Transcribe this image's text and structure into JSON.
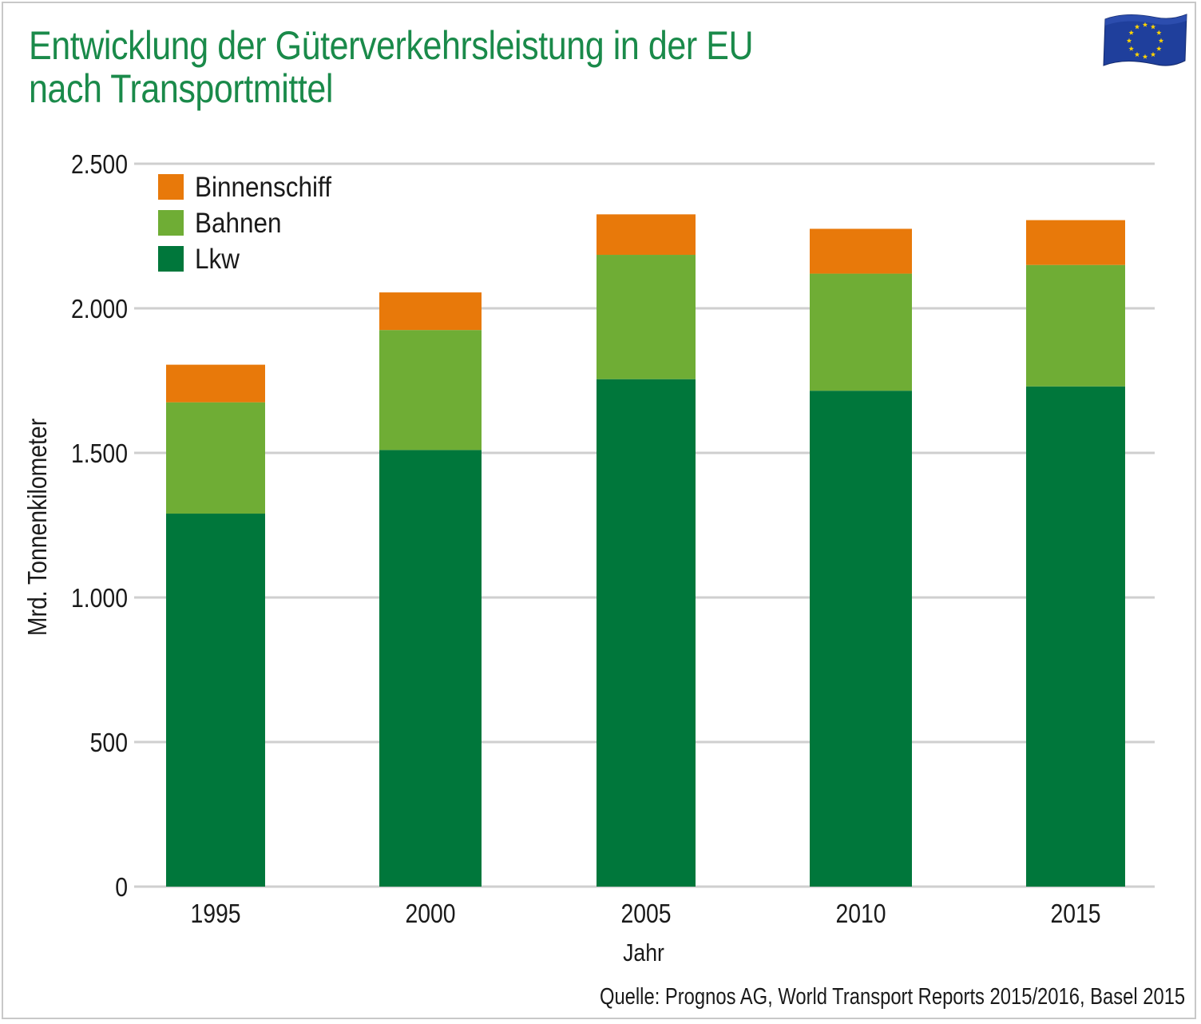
{
  "title": {
    "line1": "Entwicklung der Güterverkehrsleistung in der EU",
    "line2": "nach Transportmittel"
  },
  "source": "Quelle: Prognos AG, World Transport Reports 2015/2016, Basel 2015",
  "flag_icon": "eu-flag-icon",
  "colors": {
    "title": "#1a8a4a",
    "lkw": "#00773b",
    "bahnen": "#6fad35",
    "binnenschiff": "#e8790a",
    "grid": "#cfcfcf"
  },
  "chart_data": {
    "type": "bar",
    "stacked": true,
    "categories": [
      "1995",
      "2000",
      "2005",
      "2010",
      "2015"
    ],
    "series": [
      {
        "name": "Lkw",
        "color": "#00773b",
        "values": [
          1290,
          1510,
          1755,
          1715,
          1730
        ]
      },
      {
        "name": "Bahnen",
        "color": "#6fad35",
        "values": [
          385,
          415,
          430,
          405,
          420
        ]
      },
      {
        "name": "Binnenschiff",
        "color": "#e8790a",
        "values": [
          130,
          130,
          140,
          155,
          155
        ]
      }
    ],
    "xlabel": "Jahr",
    "ylabel": "Mrd. Tonnenkilometer",
    "ylim": [
      0,
      2500
    ],
    "yticks": [
      0,
      500,
      1000,
      1500,
      2000,
      2500
    ],
    "ytick_labels": [
      "0",
      "500",
      "1.000",
      "1.500",
      "2.000",
      "2.500"
    ],
    "legend": {
      "position": "top-left",
      "entries": [
        "Binnenschiff",
        "Bahnen",
        "Lkw"
      ]
    },
    "grid": true
  }
}
